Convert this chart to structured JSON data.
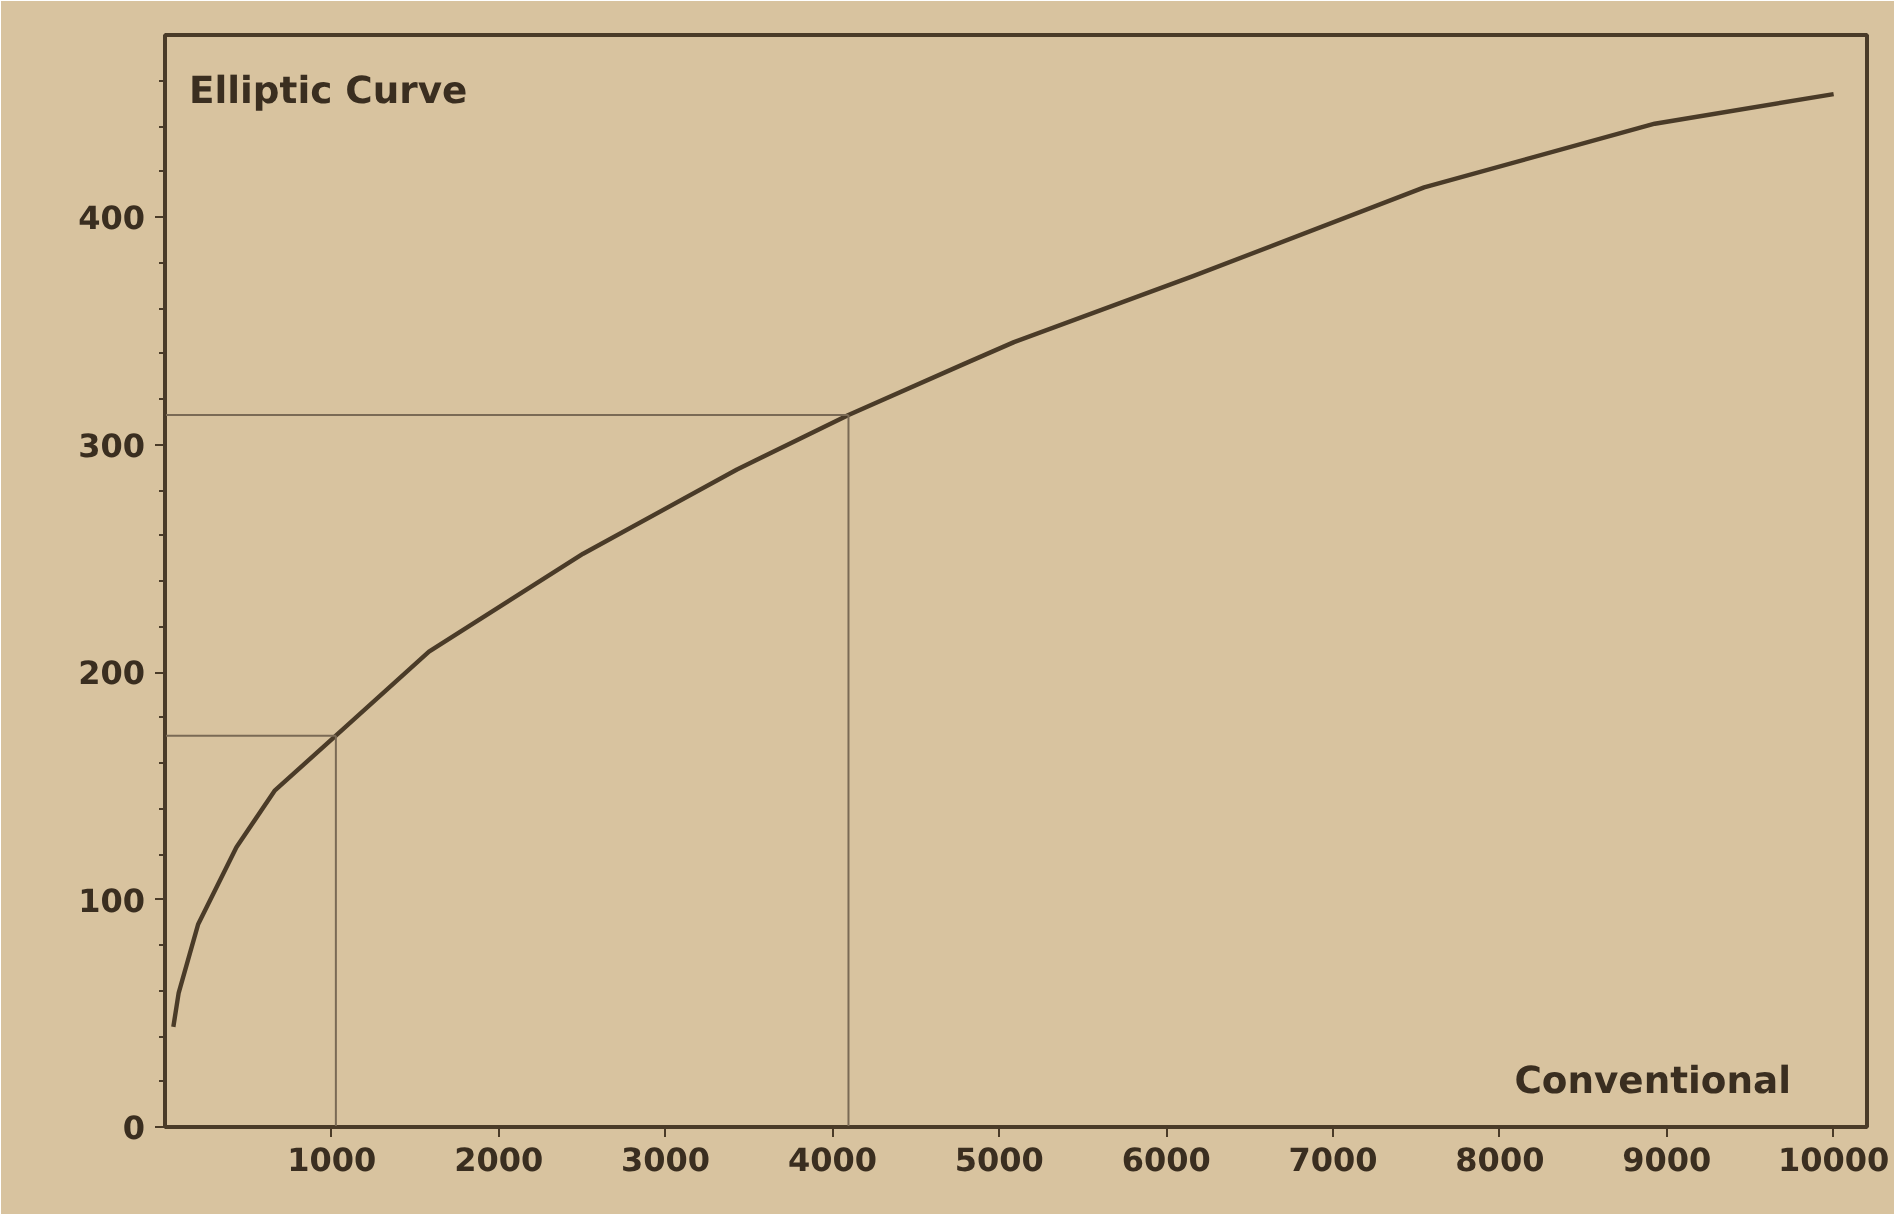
{
  "chart_data": {
    "type": "line",
    "xlabel": "Conventional",
    "ylabel": "Elliptic Curve",
    "x": [
      50,
      82,
      198,
      428,
      659,
      1024,
      1582,
      2506,
      3428,
      4096,
      4776,
      5088,
      6161,
      7546,
      8928,
      10000
    ],
    "series": [
      {
        "color": "#4a3b28",
        "values": [
          44,
          59,
          89,
          123,
          148,
          172,
          209,
          252,
          289,
          313,
          335,
          345,
          374,
          413,
          441,
          454
        ]
      }
    ],
    "xlim": [
      0,
      10200
    ],
    "ylim": [
      0,
      480
    ],
    "xticks": [
      1000,
      2000,
      3000,
      4000,
      5000,
      6000,
      7000,
      8000,
      9000,
      10000
    ],
    "yticks": [
      0,
      {
        "value": 20,
        "label": null
      },
      {
        "value": 40,
        "label": null
      },
      {
        "value": 60,
        "label": null
      },
      {
        "value": 80,
        "label": null
      },
      100,
      {
        "value": 120,
        "label": null
      },
      {
        "value": 140,
        "label": null
      },
      {
        "value": 160,
        "label": null
      },
      {
        "value": 180,
        "label": null
      },
      200,
      {
        "value": 220,
        "label": null
      },
      {
        "value": 240,
        "label": null
      },
      {
        "value": 260,
        "label": null
      },
      {
        "value": 280,
        "label": null
      },
      300,
      {
        "value": 320,
        "label": null
      },
      {
        "value": 340,
        "label": null
      },
      {
        "value": 360,
        "label": null
      },
      {
        "value": 380,
        "label": null
      },
      400,
      {
        "value": 420,
        "label": null
      },
      {
        "value": 440,
        "label": null
      },
      {
        "value": 460,
        "label": null
      }
    ],
    "ref_lines": [
      {
        "axis": "x",
        "value": 1024,
        "color": "#7a6a55"
      },
      {
        "axis": "y",
        "value": 172,
        "color": "#7a6a55"
      },
      {
        "axis": "x",
        "value": 4096,
        "color": "#7a6a55"
      },
      {
        "axis": "y",
        "value": 313,
        "color": "#7a6a55"
      }
    ],
    "grid": false,
    "marker": "none",
    "line_style": "solid"
  }
}
